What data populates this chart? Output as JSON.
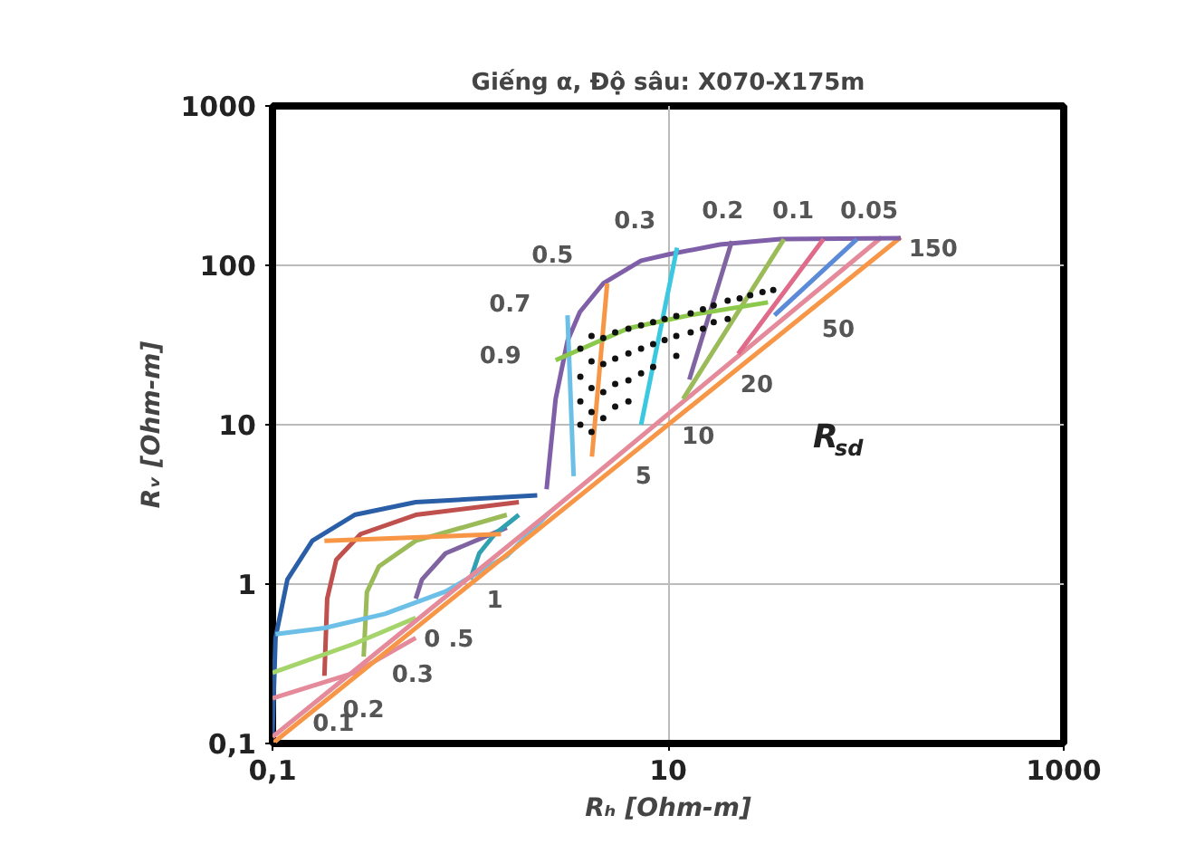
{
  "chart_data": {
    "type": "line",
    "title": "Giếng α, Độ sâu: X070-X175m",
    "xlabel": "Rₕ [Ohm-m]",
    "ylabel": "Rᵥ [Ohm-m]",
    "log": "xy",
    "grid": true,
    "line_style": "solid",
    "marker": "none",
    "xlim": [
      0.1,
      1000
    ],
    "ylim": [
      0.1,
      1000
    ],
    "xticks": [
      {
        "value": 0.1,
        "label": "0,1"
      },
      10,
      1000
    ],
    "yticks": [
      {
        "value": 0.1,
        "label": "0,1"
      },
      1,
      10,
      100,
      1000
    ],
    "series": [
      {
        "color": "#2a5fa8",
        "x": [
          0.1,
          0.1036,
          0.119,
          0.159,
          0.26,
          0.53,
          2.18
        ],
        "values": [
          0.115,
          0.46,
          1.07,
          1.87,
          2.72,
          3.27,
          3.6
        ]
      },
      {
        "color": "#c0504d",
        "x": [
          0.183,
          0.189,
          0.21,
          0.279,
          0.53,
          1.76
        ],
        "values": [
          0.266,
          0.81,
          1.42,
          2.06,
          2.72,
          3.27
        ]
      },
      {
        "color": "#9bbb59",
        "x": [
          0.289,
          0.3,
          0.345,
          0.53,
          1.53
        ],
        "values": [
          0.351,
          0.89,
          1.29,
          1.87,
          2.72
        ]
      },
      {
        "color": "#8064a2",
        "x": [
          0.53,
          0.57,
          0.75,
          1.53
        ],
        "values": [
          0.81,
          1.07,
          1.56,
          2.26
        ]
      },
      {
        "color": "#31a0b0",
        "x": [
          1.0,
          1.11,
          1.33,
          1.76
        ],
        "values": [
          1.07,
          1.56,
          2.06,
          2.72
        ]
      },
      {
        "color": "#6cc0e8",
        "x": [
          0.1036,
          0.183,
          0.37,
          0.75,
          1.53,
          2.5
        ],
        "values": [
          0.486,
          0.53,
          0.65,
          0.9,
          1.5,
          2.8
        ]
      },
      {
        "color": "#a5d46a",
        "x": [
          0.1,
          0.26,
          0.53
        ],
        "values": [
          0.278,
          0.423,
          0.614
        ]
      },
      {
        "color": "#e58a9a",
        "x": [
          0.1,
          0.26,
          0.53
        ],
        "values": [
          0.192,
          0.278,
          0.46
        ]
      },
      {
        "color": "#f79646",
        "x": [
          0.183,
          1.43
        ],
        "values": [
          1.87,
          2.06
        ]
      },
      {
        "color": "#e58a9a",
        "x": [
          0.1,
          2.5,
          120
        ],
        "values": [
          0.11,
          2.8,
          150
        ]
      },
      {
        "color": "#f79646",
        "x": [
          0.1,
          150
        ],
        "values": [
          0.1,
          150
        ]
      },
      {
        "color": "#7f5fa8",
        "x": [
          2.43,
          2.7,
          3.1,
          3.58,
          4.7,
          7.3,
          10,
          18.3,
          37,
          150
        ],
        "values": [
          3.94,
          14.5,
          33.5,
          51,
          77,
          107,
          117,
          135,
          146,
          148
        ]
      },
      {
        "color": "#6cc0e8",
        "x": [
          3.33,
          3.1
        ],
        "values": [
          4.75,
          48.6
        ]
      },
      {
        "color": "#f79646",
        "x": [
          4.12,
          4.92
        ],
        "values": [
          6.3,
          77
        ]
      },
      {
        "color": "#3cc8e0",
        "x": [
          7.3,
          11.1
        ],
        "values": [
          10,
          129
        ]
      },
      {
        "color": "#8064a2",
        "x": [
          12.8,
          21
        ],
        "values": [
          19.2,
          142
        ]
      },
      {
        "color": "#9bbb59",
        "x": [
          11.9,
          38.5
        ],
        "values": [
          14.5,
          146
        ]
      },
      {
        "color": "#e06a8a",
        "x": [
          22.6,
          61
        ],
        "values": [
          27.8,
          146
        ]
      },
      {
        "color": "#5a8ad8",
        "x": [
          34.5,
          90
        ],
        "values": [
          48.6,
          146
        ]
      },
      {
        "color": "#8cc84b",
        "x": [
          2.7,
          6.3,
          12.8,
          32
        ],
        "values": [
          25.4,
          40.3,
          48.6,
          58.6
        ]
      },
      {
        "type": "scatter",
        "marker": "circle",
        "color": "#111111",
        "x": [
          3.6,
          3.6,
          3.6,
          3.6,
          4.1,
          4.1,
          4.1,
          4.1,
          4.1,
          4.7,
          4.7,
          4.7,
          4.7,
          5.4,
          5.4,
          5.4,
          5.4,
          6.3,
          6.3,
          6.3,
          6.3,
          7.3,
          7.3,
          7.3,
          8.4,
          8.4,
          8.4,
          9.6,
          9.6,
          11,
          11,
          11,
          13,
          13,
          15,
          15,
          17,
          17,
          20,
          20,
          23,
          26,
          30,
          34
        ],
        "values": [
          30,
          20,
          14,
          10,
          36,
          25,
          17,
          12,
          9,
          35,
          24,
          16,
          11,
          38,
          26,
          18,
          13,
          40,
          28,
          19,
          14,
          42,
          30,
          21,
          44,
          32,
          23,
          46,
          34,
          48,
          36,
          27,
          50,
          38,
          53,
          40,
          56,
          44,
          60,
          46,
          62,
          65,
          68,
          70
        ]
      }
    ],
    "annotations": [
      "0.3",
      "0.2",
      "0.1",
      "0.05",
      "150",
      "0.5",
      "0.7",
      "0.9",
      "50",
      "20",
      "10",
      "5",
      "R$_{sd}$",
      "1",
      "0 .5",
      "0.3",
      "0.2",
      "0.1"
    ]
  }
}
